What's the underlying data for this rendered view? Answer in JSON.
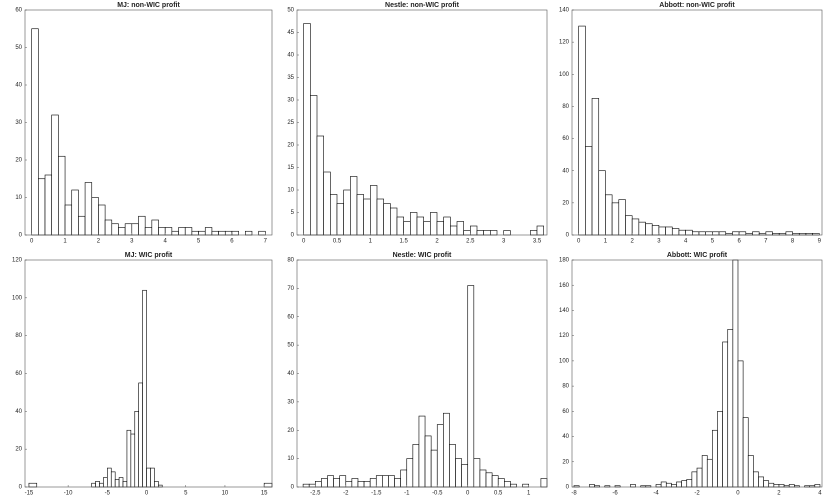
{
  "chart_data": [
    {
      "type": "histogram",
      "title": "MJ: non-WIC profit",
      "color": "#ffffff",
      "edgecolor": "#000000",
      "bins": [
        0,
        0.2,
        0.4,
        0.6,
        0.8,
        1,
        1.2,
        1.4,
        1.6,
        1.8,
        2,
        2.2,
        2.4,
        2.6,
        2.8,
        3,
        3.2,
        3.4,
        3.6,
        3.8,
        4,
        4.2,
        4.4,
        4.6,
        4.8,
        5,
        5.2,
        5.4,
        5.6,
        5.8,
        6,
        6.2,
        6.4,
        6.6,
        6.8,
        7
      ],
      "values": [
        55,
        15,
        16,
        32,
        21,
        8,
        12,
        5,
        14,
        10,
        8,
        4,
        3,
        2,
        3,
        3,
        5,
        2,
        4,
        2,
        2,
        1,
        2,
        2,
        1,
        1,
        2,
        1,
        1,
        1,
        1,
        0,
        1,
        0,
        1
      ],
      "xlim": [
        -0.2,
        7.2
      ],
      "xticks": [
        0,
        1,
        2,
        3,
        4,
        5,
        6,
        7
      ],
      "ylim": [
        0,
        60
      ],
      "yticks": [
        0,
        10,
        20,
        30,
        40,
        50,
        60
      ]
    },
    {
      "type": "histogram",
      "title": "Nestle: non-WIC profit",
      "color": "#ffffff",
      "edgecolor": "#000000",
      "bins": [
        0,
        0.1,
        0.2,
        0.3,
        0.4,
        0.5,
        0.6,
        0.7,
        0.8,
        0.9,
        1,
        1.1,
        1.2,
        1.3,
        1.4,
        1.5,
        1.6,
        1.7,
        1.8,
        1.9,
        2,
        2.1,
        2.2,
        2.3,
        2.4,
        2.5,
        2.6,
        2.7,
        2.8,
        2.9,
        3,
        3.1,
        3.2,
        3.3,
        3.4,
        3.5,
        3.6
      ],
      "values": [
        47,
        31,
        22,
        14,
        9,
        7,
        10,
        13,
        9,
        8,
        11,
        8,
        7,
        6,
        4,
        3,
        5,
        4,
        3,
        5,
        3,
        4,
        2,
        3,
        1,
        2,
        1,
        1,
        1,
        0,
        1,
        0,
        0,
        0,
        1,
        2
      ],
      "xlim": [
        -0.1,
        3.65
      ],
      "xticks": [
        0,
        0.5,
        1,
        1.5,
        2,
        2.5,
        3,
        3.5
      ],
      "ylim": [
        0,
        50
      ],
      "yticks": [
        0,
        5,
        10,
        15,
        20,
        25,
        30,
        35,
        40,
        45,
        50
      ]
    },
    {
      "type": "histogram",
      "title": "Abbott: non-WIC profit",
      "color": "#ffffff",
      "edgecolor": "#000000",
      "bins": [
        0,
        0.25,
        0.5,
        0.75,
        1,
        1.25,
        1.5,
        1.75,
        2,
        2.25,
        2.5,
        2.75,
        3,
        3.25,
        3.5,
        3.75,
        4,
        4.25,
        4.5,
        4.75,
        5,
        5.25,
        5.5,
        5.75,
        6,
        6.25,
        6.5,
        6.75,
        7,
        7.25,
        7.5,
        7.75,
        8,
        8.25,
        8.5,
        8.75,
        9
      ],
      "values": [
        130,
        55,
        85,
        40,
        25,
        20,
        22,
        12,
        10,
        8,
        7,
        6,
        5,
        5,
        4,
        3,
        3,
        2,
        2,
        2,
        2,
        2,
        1,
        2,
        2,
        1,
        2,
        1,
        2,
        1,
        1,
        2,
        1,
        1,
        1,
        1
      ],
      "xlim": [
        -0.25,
        9.1
      ],
      "xticks": [
        0,
        1,
        2,
        3,
        4,
        5,
        6,
        7,
        8,
        9
      ],
      "ylim": [
        0,
        140
      ],
      "yticks": [
        0,
        20,
        40,
        60,
        80,
        100,
        120,
        140
      ]
    },
    {
      "type": "histogram",
      "title": "MJ: WIC profit",
      "color": "#ffffff",
      "edgecolor": "#000000",
      "bins": [
        -15,
        -14,
        -7,
        -6.5,
        -6,
        -5.5,
        -5,
        -4.5,
        -4,
        -3.5,
        -3,
        -2.5,
        -2,
        -1.5,
        -1,
        -0.5,
        0,
        0.5,
        1,
        1.5,
        2,
        15,
        16
      ],
      "values": [
        2,
        0,
        2,
        3,
        2,
        5,
        10,
        8,
        4,
        5,
        3,
        30,
        28,
        40,
        55,
        104,
        10,
        10,
        3,
        1,
        0,
        2
      ],
      "xlim": [
        -15.5,
        16
      ],
      "xticks": [
        -15,
        -10,
        -5,
        0,
        5,
        10,
        15
      ],
      "ylim": [
        0,
        120
      ],
      "yticks": [
        0,
        20,
        40,
        60,
        80,
        100,
        120
      ]
    },
    {
      "type": "histogram",
      "title": "Nestle: WIC profit",
      "color": "#ffffff",
      "edgecolor": "#000000",
      "bins": [
        -2.7,
        -2.6,
        -2.5,
        -2.4,
        -2.3,
        -2.2,
        -2.1,
        -2,
        -1.9,
        -1.8,
        -1.7,
        -1.6,
        -1.5,
        -1.4,
        -1.3,
        -1.2,
        -1.1,
        -1,
        -0.9,
        -0.8,
        -0.7,
        -0.6,
        -0.5,
        -0.4,
        -0.3,
        -0.2,
        -0.1,
        0,
        0.1,
        0.2,
        0.3,
        0.4,
        0.5,
        0.6,
        0.7,
        0.8,
        0.9,
        1,
        1.1,
        1.2,
        1.3
      ],
      "values": [
        1,
        1,
        2,
        3,
        4,
        3,
        4,
        2,
        3,
        2,
        2,
        3,
        4,
        4,
        4,
        3,
        6,
        10,
        15,
        25,
        18,
        13,
        22,
        26,
        15,
        10,
        8,
        71,
        10,
        6,
        5,
        4,
        3,
        2,
        1,
        0,
        1,
        0,
        0,
        3
      ],
      "xlim": [
        -2.8,
        1.3
      ],
      "xticks": [
        -2.5,
        -2,
        -1.5,
        -1,
        -0.5,
        0,
        0.5,
        1
      ],
      "ylim": [
        0,
        80
      ],
      "yticks": [
        0,
        10,
        20,
        30,
        40,
        50,
        60,
        70,
        80
      ]
    },
    {
      "type": "histogram",
      "title": "Abbott: WIC profit",
      "color": "#ffffff",
      "edgecolor": "#000000",
      "bins": [
        -8,
        -7.75,
        -7.5,
        -7.25,
        -7,
        -6.75,
        -6.5,
        -6.25,
        -6,
        -5.75,
        -5.5,
        -5.25,
        -5,
        -4.75,
        -4.5,
        -4.25,
        -4,
        -3.75,
        -3.5,
        -3.25,
        -3,
        -2.75,
        -2.5,
        -2.25,
        -2,
        -1.75,
        -1.5,
        -1.25,
        -1,
        -0.75,
        -0.5,
        -0.25,
        0,
        0.25,
        0.5,
        0.75,
        1,
        1.25,
        1.5,
        1.75,
        2,
        2.25,
        2.5,
        2.75,
        3,
        3.25,
        3.5,
        3.75,
        4
      ],
      "values": [
        1,
        0,
        0,
        2,
        1,
        0,
        1,
        0,
        1,
        0,
        0,
        2,
        0,
        1,
        1,
        0,
        2,
        4,
        3,
        2,
        4,
        5,
        6,
        12,
        15,
        25,
        22,
        45,
        60,
        115,
        125,
        180,
        100,
        55,
        25,
        12,
        8,
        5,
        3,
        2,
        2,
        1,
        2,
        1,
        0,
        1,
        1,
        2
      ],
      "xlim": [
        -8.1,
        4.1
      ],
      "xticks": [
        -8,
        -6,
        -4,
        -2,
        0,
        2,
        4
      ],
      "ylim": [
        0,
        180
      ],
      "yticks": [
        0,
        20,
        40,
        60,
        80,
        100,
        120,
        140,
        160,
        180
      ]
    }
  ]
}
